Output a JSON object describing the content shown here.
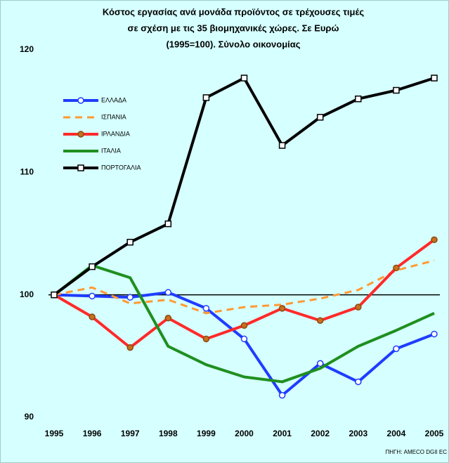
{
  "chart_data": {
    "type": "line",
    "title": [
      "Κόστος εργασίας ανά μονάδα προϊόντος σε τρέχουσες τιμές",
      "σε σχέση με τις 35 βιομηχανικές χώρες. Σε Ευρώ",
      "(1995=100). Σύνολο οικονομίας"
    ],
    "source": "ΠΗΓΗ: AMECO DGII EC",
    "categories": [
      "1995",
      "1996",
      "1997",
      "1998",
      "1999",
      "2000",
      "2001",
      "2002",
      "2003",
      "2004",
      "2005"
    ],
    "ylim": [
      90,
      120
    ],
    "yticks": [
      90,
      100,
      110,
      120
    ],
    "reference_line": 100,
    "legend": "top-left",
    "series": [
      {
        "name": "ΕΛΛΑΔΑ",
        "color": "#1f3cff",
        "marker": "circle",
        "values": [
          100,
          99.9,
          99.8,
          100.2,
          98.9,
          96.4,
          91.8,
          94.4,
          92.9,
          95.6,
          96.8
        ]
      },
      {
        "name": "ΙΣΠΑΝΙΑ",
        "color": "#ff9933",
        "dash": true,
        "values": [
          100,
          100.6,
          99.3,
          99.6,
          98.5,
          99.0,
          99.2,
          99.7,
          100.4,
          102.0,
          102.8
        ]
      },
      {
        "name": "ΙΡΛΑΝΔΙΑ",
        "color": "#ff2a2a",
        "marker": "circle",
        "values": [
          100,
          98.2,
          95.7,
          98.1,
          96.4,
          97.5,
          98.9,
          97.9,
          99.0,
          102.2,
          104.5
        ]
      },
      {
        "name": "ΙΤΑΛΙΑ",
        "color": "#1f8f1f",
        "values": [
          100,
          102.4,
          101.4,
          95.8,
          94.3,
          93.3,
          92.9,
          94.0,
          95.8,
          97.1,
          98.5
        ]
      },
      {
        "name": "ΠΟΡΤΟΓΑΛΙΑ",
        "color": "#000000",
        "marker": "square",
        "values": [
          100,
          102.3,
          104.3,
          105.8,
          116.1,
          117.7,
          112.2,
          114.5,
          116.0,
          116.7,
          117.7
        ]
      }
    ]
  }
}
